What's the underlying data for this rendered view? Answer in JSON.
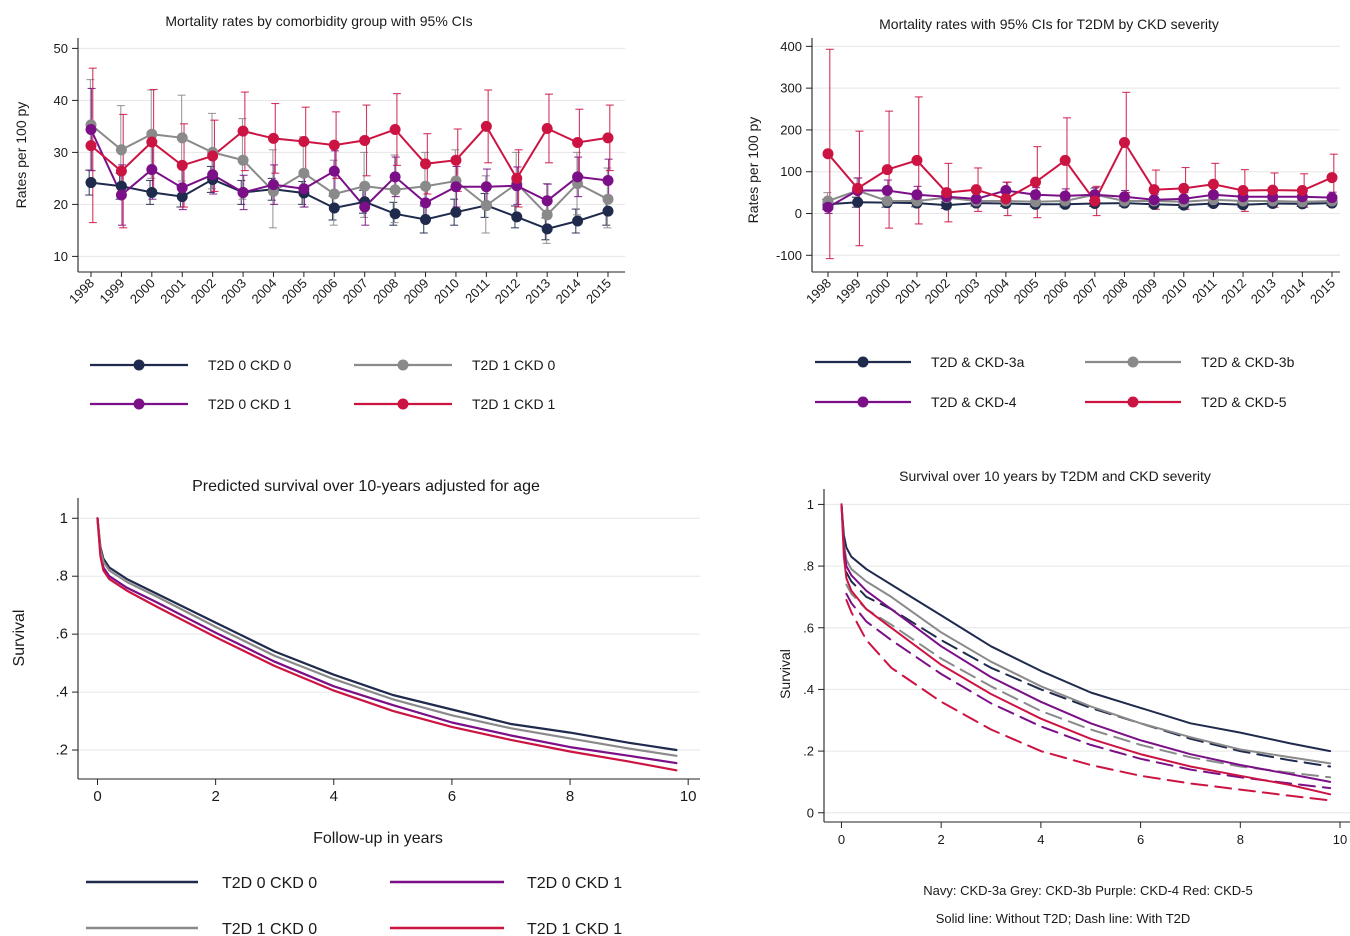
{
  "colors": {
    "navy": "#1f2a4d",
    "grey": "#8a8a8a",
    "purple": "#7b0f87",
    "red": "#cc1443"
  },
  "chart_data": [
    {
      "type": "line",
      "title": "Mortality rates by comorbidity group with 95% CIs",
      "xlabel": "",
      "ylabel": "Rates per 100 py",
      "x": [
        "1998",
        "1999",
        "2000",
        "2001",
        "2002",
        "2003",
        "2004",
        "2005",
        "2006",
        "2007",
        "2008",
        "2009",
        "2010",
        "2011",
        "2012",
        "2013",
        "2014",
        "2015"
      ],
      "ylim": [
        7,
        52
      ],
      "yticks": [
        10,
        20,
        30,
        40,
        50
      ],
      "grid": true,
      "legend_position": "bottom",
      "series": [
        {
          "name": "T2D 0 CKD 0",
          "color": "#1f2a4d",
          "values": [
            24.2,
            23.5,
            22.3,
            21.5,
            24.8,
            22.3,
            22.9,
            22.2,
            19.3,
            20.5,
            18.2,
            17.1,
            18.5,
            19.8,
            17.6,
            15.3,
            16.8,
            18.7
          ],
          "lower": [
            21.8,
            21.0,
            20.0,
            19.5,
            22.3,
            20.0,
            20.8,
            20.0,
            17.0,
            18.3,
            16.0,
            14.5,
            16.0,
            17.5,
            15.5,
            13.2,
            14.5,
            16.0
          ],
          "upper": [
            26.6,
            26.0,
            24.6,
            23.5,
            27.3,
            24.6,
            25.0,
            24.4,
            21.6,
            22.7,
            20.4,
            19.7,
            21.0,
            22.1,
            19.7,
            17.4,
            19.1,
            21.4
          ]
        },
        {
          "name": "T2D 1 CKD 0",
          "color": "#8a8a8a",
          "values": [
            35.3,
            30.5,
            33.5,
            32.8,
            30.0,
            28.5,
            22.5,
            26.0,
            22.0,
            23.5,
            22.8,
            23.5,
            24.5,
            19.8,
            24.0,
            18.0,
            24.0,
            21.0
          ],
          "lower": [
            26.5,
            22.0,
            25.0,
            24.5,
            23.0,
            21.0,
            15.5,
            19.5,
            16.0,
            17.5,
            16.5,
            17.5,
            18.5,
            14.5,
            18.0,
            12.5,
            18.0,
            15.5
          ],
          "upper": [
            44.0,
            39.0,
            42.0,
            41.0,
            37.5,
            36.5,
            30.5,
            33.0,
            28.5,
            30.0,
            29.5,
            30.0,
            30.5,
            25.5,
            30.0,
            24.0,
            30.0,
            27.0
          ]
        },
        {
          "name": "T2D 0 CKD 1",
          "color": "#7b0f87",
          "values": [
            34.4,
            21.8,
            26.7,
            23.2,
            25.7,
            22.3,
            23.8,
            23.0,
            26.4,
            19.5,
            25.3,
            20.3,
            23.4,
            23.4,
            23.6,
            20.7,
            25.3,
            24.6
          ],
          "lower": [
            26.5,
            16.0,
            21.0,
            19.0,
            22.0,
            19.0,
            20.0,
            19.5,
            22.5,
            16.0,
            21.5,
            17.0,
            19.5,
            20.0,
            20.0,
            17.5,
            21.5,
            20.5
          ],
          "upper": [
            42.3,
            27.6,
            32.4,
            27.4,
            29.4,
            25.6,
            27.6,
            26.5,
            30.3,
            23.0,
            29.1,
            23.6,
            27.3,
            26.8,
            27.2,
            23.9,
            29.1,
            28.7
          ]
        },
        {
          "name": "T2D 1 CKD 1",
          "color": "#cc1443",
          "values": [
            31.3,
            26.4,
            32.0,
            27.5,
            29.3,
            34.1,
            32.7,
            32.1,
            31.4,
            32.3,
            34.4,
            27.8,
            28.5,
            35.0,
            25.0,
            34.6,
            31.9,
            32.8
          ],
          "lower": [
            16.5,
            15.5,
            22.0,
            19.5,
            22.5,
            26.5,
            26.0,
            25.5,
            25.0,
            25.5,
            27.5,
            22.0,
            22.5,
            28.0,
            19.5,
            28.0,
            25.5,
            26.5
          ],
          "upper": [
            46.2,
            37.3,
            42.1,
            35.5,
            36.2,
            41.6,
            39.4,
            38.7,
            37.8,
            39.1,
            41.3,
            33.6,
            34.5,
            42.0,
            30.5,
            41.2,
            38.3,
            39.1
          ]
        }
      ]
    },
    {
      "type": "line",
      "title": "Mortality rates with 95% CIs for T2DM by CKD severity",
      "xlabel": "",
      "ylabel": "Rates per 100 py",
      "x": [
        "1998",
        "1999",
        "2000",
        "2001",
        "2002",
        "2003",
        "2004",
        "2005",
        "2006",
        "2007",
        "2008",
        "2009",
        "2010",
        "2011",
        "2012",
        "2013",
        "2014",
        "2015"
      ],
      "ylim": [
        -140,
        420
      ],
      "yticks": [
        -100,
        0,
        100,
        200,
        300,
        400
      ],
      "grid": true,
      "legend_position": "bottom",
      "series": [
        {
          "name": "T2D & CKD-3a",
          "color": "#1f2a4d",
          "values": [
            22,
            27,
            26,
            25,
            20,
            25,
            24,
            22,
            22,
            24,
            25,
            22,
            20,
            24,
            21,
            24,
            23,
            25
          ],
          "lower": [
            10,
            15,
            15,
            16,
            12,
            18,
            17,
            16,
            16,
            17,
            18,
            16,
            14,
            18,
            16,
            18,
            17,
            19
          ],
          "upper": [
            34,
            39,
            37,
            34,
            28,
            32,
            31,
            28,
            28,
            31,
            32,
            28,
            26,
            30,
            26,
            30,
            29,
            31
          ]
        },
        {
          "name": "T2D & CKD-3b",
          "color": "#8a8a8a",
          "values": [
            30,
            55,
            30,
            30,
            38,
            30,
            30,
            28,
            30,
            45,
            30,
            30,
            28,
            33,
            30,
            30,
            28,
            30
          ],
          "lower": [
            10,
            25,
            15,
            18,
            25,
            20,
            20,
            18,
            20,
            30,
            20,
            20,
            18,
            22,
            20,
            20,
            18,
            20
          ],
          "upper": [
            50,
            85,
            45,
            42,
            51,
            40,
            40,
            38,
            40,
            60,
            40,
            40,
            38,
            44,
            40,
            40,
            38,
            40
          ]
        },
        {
          "name": "T2D & CKD-4",
          "color": "#7b0f87",
          "values": [
            15,
            55,
            55,
            45,
            40,
            35,
            55,
            45,
            42,
            45,
            40,
            33,
            35,
            45,
            40,
            40,
            40,
            38
          ],
          "lower": [
            0,
            25,
            30,
            25,
            22,
            20,
            35,
            28,
            25,
            28,
            25,
            20,
            20,
            28,
            25,
            25,
            25,
            25
          ],
          "upper": [
            30,
            85,
            80,
            65,
            58,
            50,
            75,
            62,
            59,
            62,
            55,
            46,
            50,
            62,
            55,
            55,
            55,
            51
          ]
        },
        {
          "name": "T2D & CKD-5",
          "color": "#cc1443",
          "values": [
            143,
            60,
            105,
            127,
            50,
            57,
            35,
            75,
            127,
            30,
            170,
            57,
            60,
            70,
            55,
            56,
            55,
            86
          ],
          "lower": [
            -108,
            -77,
            -35,
            -25,
            -20,
            5,
            -5,
            -10,
            25,
            -5,
            50,
            10,
            10,
            20,
            5,
            15,
            15,
            30
          ],
          "upper": [
            393,
            197,
            245,
            279,
            120,
            109,
            75,
            160,
            229,
            65,
            290,
            104,
            110,
            120,
            105,
            97,
            95,
            142
          ]
        }
      ]
    },
    {
      "type": "line",
      "title": "Predicted survival over 10-years adjusted for age",
      "xlabel": "Follow-up in years",
      "ylabel": "Survival",
      "xlim": [
        -0.33,
        10.2
      ],
      "xticks": [
        0,
        2,
        4,
        6,
        8,
        10
      ],
      "ylim": [
        0.1,
        1.07
      ],
      "yticks": [
        0.2,
        0.4,
        0.6,
        0.8,
        1
      ],
      "ytick_labels": [
        ".2",
        ".4",
        ".6",
        ".8",
        "1"
      ],
      "grid": true,
      "legend_position": "bottom",
      "series": [
        {
          "name": "T2D 0 CKD 0",
          "color": "#1f2a4d",
          "dash": false,
          "x": [
            0,
            0.05,
            0.1,
            0.2,
            0.5,
            1,
            2,
            3,
            4,
            5,
            6,
            7,
            8,
            9,
            9.8
          ],
          "values": [
            1,
            0.9,
            0.86,
            0.83,
            0.79,
            0.74,
            0.64,
            0.54,
            0.46,
            0.39,
            0.34,
            0.29,
            0.26,
            0.225,
            0.2
          ]
        },
        {
          "name": "T2D 0 CKD 1",
          "color": "#7b0f87",
          "dash": false,
          "x": [
            0,
            0.05,
            0.1,
            0.2,
            0.5,
            1,
            2,
            3,
            4,
            5,
            6,
            7,
            8,
            9,
            9.8
          ],
          "values": [
            1,
            0.88,
            0.83,
            0.8,
            0.76,
            0.71,
            0.605,
            0.505,
            0.42,
            0.355,
            0.295,
            0.25,
            0.21,
            0.18,
            0.155
          ]
        },
        {
          "name": "T2D 1 CKD 0",
          "color": "#8a8a8a",
          "dash": false,
          "x": [
            0,
            0.05,
            0.1,
            0.2,
            0.5,
            1,
            2,
            3,
            4,
            5,
            6,
            7,
            8,
            9,
            9.8
          ],
          "values": [
            1,
            0.89,
            0.85,
            0.82,
            0.78,
            0.73,
            0.625,
            0.525,
            0.445,
            0.375,
            0.32,
            0.275,
            0.24,
            0.205,
            0.18
          ]
        },
        {
          "name": "T2D 1 CKD 1",
          "color": "#cc1443",
          "dash": false,
          "x": [
            0,
            0.05,
            0.1,
            0.2,
            0.5,
            1,
            2,
            3,
            4,
            5,
            6,
            7,
            8,
            9,
            9.8
          ],
          "values": [
            1,
            0.87,
            0.82,
            0.79,
            0.75,
            0.695,
            0.59,
            0.49,
            0.405,
            0.335,
            0.28,
            0.235,
            0.195,
            0.16,
            0.13
          ]
        }
      ]
    },
    {
      "type": "line",
      "title": "Survival over 10 years by T2DM and CKD severity",
      "xlabel": "",
      "ylabel": "Survival",
      "xlim": [
        -0.35,
        10.2
      ],
      "xticks": [
        0,
        2,
        4,
        6,
        8,
        10
      ],
      "ylim": [
        -0.03,
        1.05
      ],
      "yticks": [
        0,
        0.2,
        0.4,
        0.6,
        0.8,
        1
      ],
      "ytick_labels": [
        "0",
        ".2",
        ".4",
        ".6",
        ".8",
        "1"
      ],
      "grid": true,
      "notes": [
        "Navy: CKD-3a  Grey: CKD-3b  Purple: CKD-4  Red: CKD-5",
        "Solid line: Without T2D;  Dash line: With T2D"
      ],
      "series": [
        {
          "color": "#1f2a4d",
          "dash": false,
          "x": [
            0,
            0.05,
            0.1,
            0.2,
            0.5,
            1,
            2,
            3,
            4,
            5,
            6,
            7,
            8,
            9,
            9.8
          ],
          "values": [
            1,
            0.9,
            0.86,
            0.83,
            0.79,
            0.74,
            0.64,
            0.54,
            0.46,
            0.39,
            0.34,
            0.29,
            0.26,
            0.225,
            0.2
          ]
        },
        {
          "color": "#1f2a4d",
          "dash": true,
          "x": [
            0.1,
            0.2,
            0.5,
            1,
            2,
            3,
            4,
            5,
            6,
            7,
            8,
            9,
            9.8
          ],
          "values": [
            0.78,
            0.75,
            0.7,
            0.66,
            0.56,
            0.47,
            0.4,
            0.34,
            0.29,
            0.24,
            0.2,
            0.17,
            0.15
          ]
        },
        {
          "color": "#8a8a8a",
          "dash": false,
          "x": [
            0,
            0.05,
            0.1,
            0.2,
            0.5,
            1,
            2,
            3,
            4,
            5,
            6,
            7,
            8,
            9,
            9.8
          ],
          "values": [
            1,
            0.87,
            0.82,
            0.79,
            0.75,
            0.7,
            0.585,
            0.49,
            0.41,
            0.345,
            0.29,
            0.245,
            0.205,
            0.18,
            0.16
          ]
        },
        {
          "color": "#8a8a8a",
          "dash": true,
          "x": [
            0.1,
            0.2,
            0.5,
            1,
            2,
            3,
            4,
            5,
            6,
            7,
            8,
            9,
            9.8
          ],
          "values": [
            0.74,
            0.71,
            0.66,
            0.61,
            0.5,
            0.41,
            0.33,
            0.27,
            0.22,
            0.18,
            0.15,
            0.13,
            0.115
          ]
        },
        {
          "color": "#7b0f87",
          "dash": false,
          "x": [
            0,
            0.05,
            0.1,
            0.2,
            0.5,
            1,
            2,
            3,
            4,
            5,
            6,
            7,
            8,
            9,
            9.8
          ],
          "values": [
            1,
            0.86,
            0.8,
            0.77,
            0.72,
            0.66,
            0.54,
            0.44,
            0.36,
            0.29,
            0.235,
            0.19,
            0.155,
            0.125,
            0.1
          ]
        },
        {
          "color": "#7b0f87",
          "dash": true,
          "x": [
            0.1,
            0.2,
            0.5,
            1,
            2,
            3,
            4,
            5,
            6,
            7,
            8,
            9,
            9.8
          ],
          "values": [
            0.71,
            0.68,
            0.62,
            0.56,
            0.45,
            0.355,
            0.28,
            0.22,
            0.175,
            0.14,
            0.115,
            0.095,
            0.08
          ]
        },
        {
          "color": "#cc1443",
          "dash": false,
          "x": [
            0,
            0.05,
            0.1,
            0.2,
            0.5,
            1,
            2,
            3,
            4,
            5,
            6,
            7,
            8,
            9,
            9.8
          ],
          "values": [
            1,
            0.83,
            0.76,
            0.72,
            0.66,
            0.6,
            0.48,
            0.385,
            0.305,
            0.24,
            0.19,
            0.15,
            0.12,
            0.09,
            0.06
          ]
        },
        {
          "color": "#cc1443",
          "dash": true,
          "x": [
            0.1,
            0.2,
            0.5,
            1,
            2,
            3,
            4,
            5,
            6,
            7,
            8,
            9,
            9.8
          ],
          "values": [
            0.69,
            0.65,
            0.56,
            0.47,
            0.36,
            0.27,
            0.2,
            0.155,
            0.12,
            0.095,
            0.075,
            0.055,
            0.04
          ]
        }
      ]
    }
  ]
}
